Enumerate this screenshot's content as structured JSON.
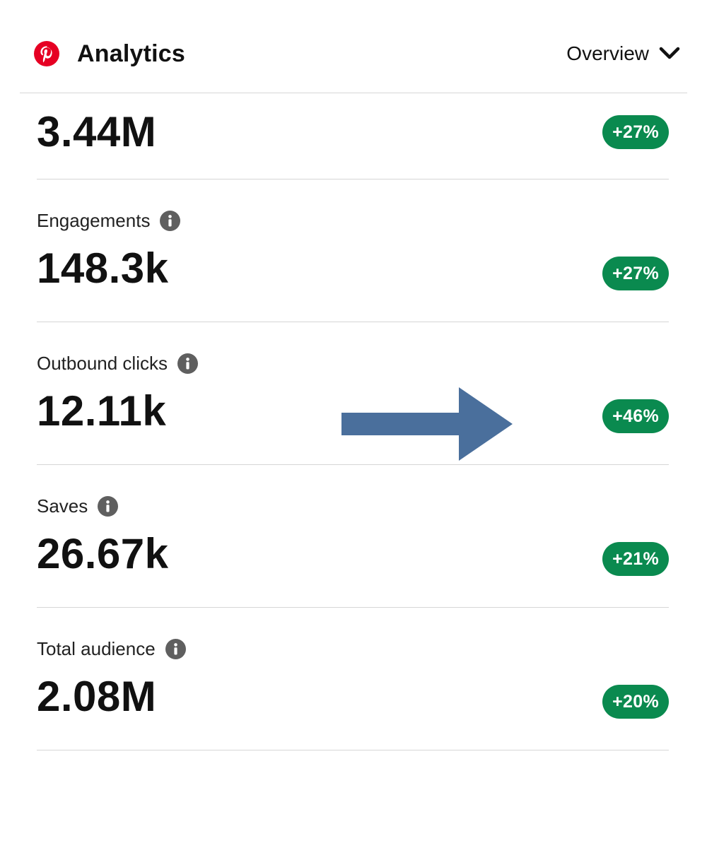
{
  "header": {
    "title": "Analytics",
    "logo_icon": "pinterest-logo",
    "brand_color": "#e60023",
    "view_selector": {
      "label": "Overview",
      "icon": "chevron-down-icon"
    }
  },
  "metrics": [
    {
      "label": "",
      "value": "3.44M",
      "change": "+27%"
    },
    {
      "label": "Engagements",
      "value": "148.3k",
      "change": "+27%"
    },
    {
      "label": "Outbound clicks",
      "value": "12.11k",
      "change": "+46%"
    },
    {
      "label": "Saves",
      "value": "26.67k",
      "change": "+21%"
    },
    {
      "label": "Total audience",
      "value": "2.08M",
      "change": "+20%"
    }
  ],
  "colors": {
    "badge_green": "#0a8a4f",
    "arrow_blue": "#4a6f9c",
    "info_icon_gray": "#5f5f5f"
  },
  "annotation": {
    "icon": "arrow-right-icon"
  }
}
